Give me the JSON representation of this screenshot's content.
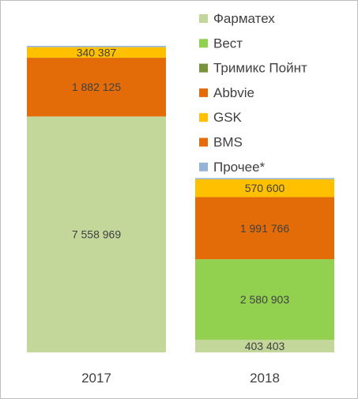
{
  "chart_data": {
    "type": "bar",
    "stacked": true,
    "title": "",
    "xlabel": "",
    "ylabel": "",
    "categories": [
      "2017",
      "2018"
    ],
    "series": [
      {
        "name": "Фарматех",
        "color": "#c4d79b",
        "values": [
          7558969,
          403403
        ],
        "labels": [
          "7 558 969",
          "403 403"
        ]
      },
      {
        "name": "Вест",
        "color": "#92d050",
        "values": [
          0,
          2580903
        ],
        "labels": [
          "",
          "2 580 903"
        ]
      },
      {
        "name": "Тримикс Пойнт",
        "color": "#77933c",
        "values": [
          0,
          0
        ],
        "labels": [
          "",
          ""
        ]
      },
      {
        "name": "Abbvie",
        "color": "#e36c09",
        "values": [
          1882125,
          1991766
        ],
        "labels": [
          "1 882 125",
          "1 991 766"
        ]
      },
      {
        "name": "GSK",
        "color": "#ffc000",
        "values": [
          340387,
          570600
        ],
        "labels": [
          "340 387",
          "570 600"
        ]
      },
      {
        "name": "BMS",
        "color": "#e46c0a",
        "values": [
          0,
          0
        ],
        "labels": [
          "",
          ""
        ]
      },
      {
        "name": "Прочее*",
        "color": "#95b3d7",
        "values": [
          40000,
          40000
        ],
        "labels": [
          "",
          ""
        ]
      }
    ],
    "legend_position": "top-right",
    "grid": false,
    "ylim": [
      0,
      10000000
    ]
  }
}
